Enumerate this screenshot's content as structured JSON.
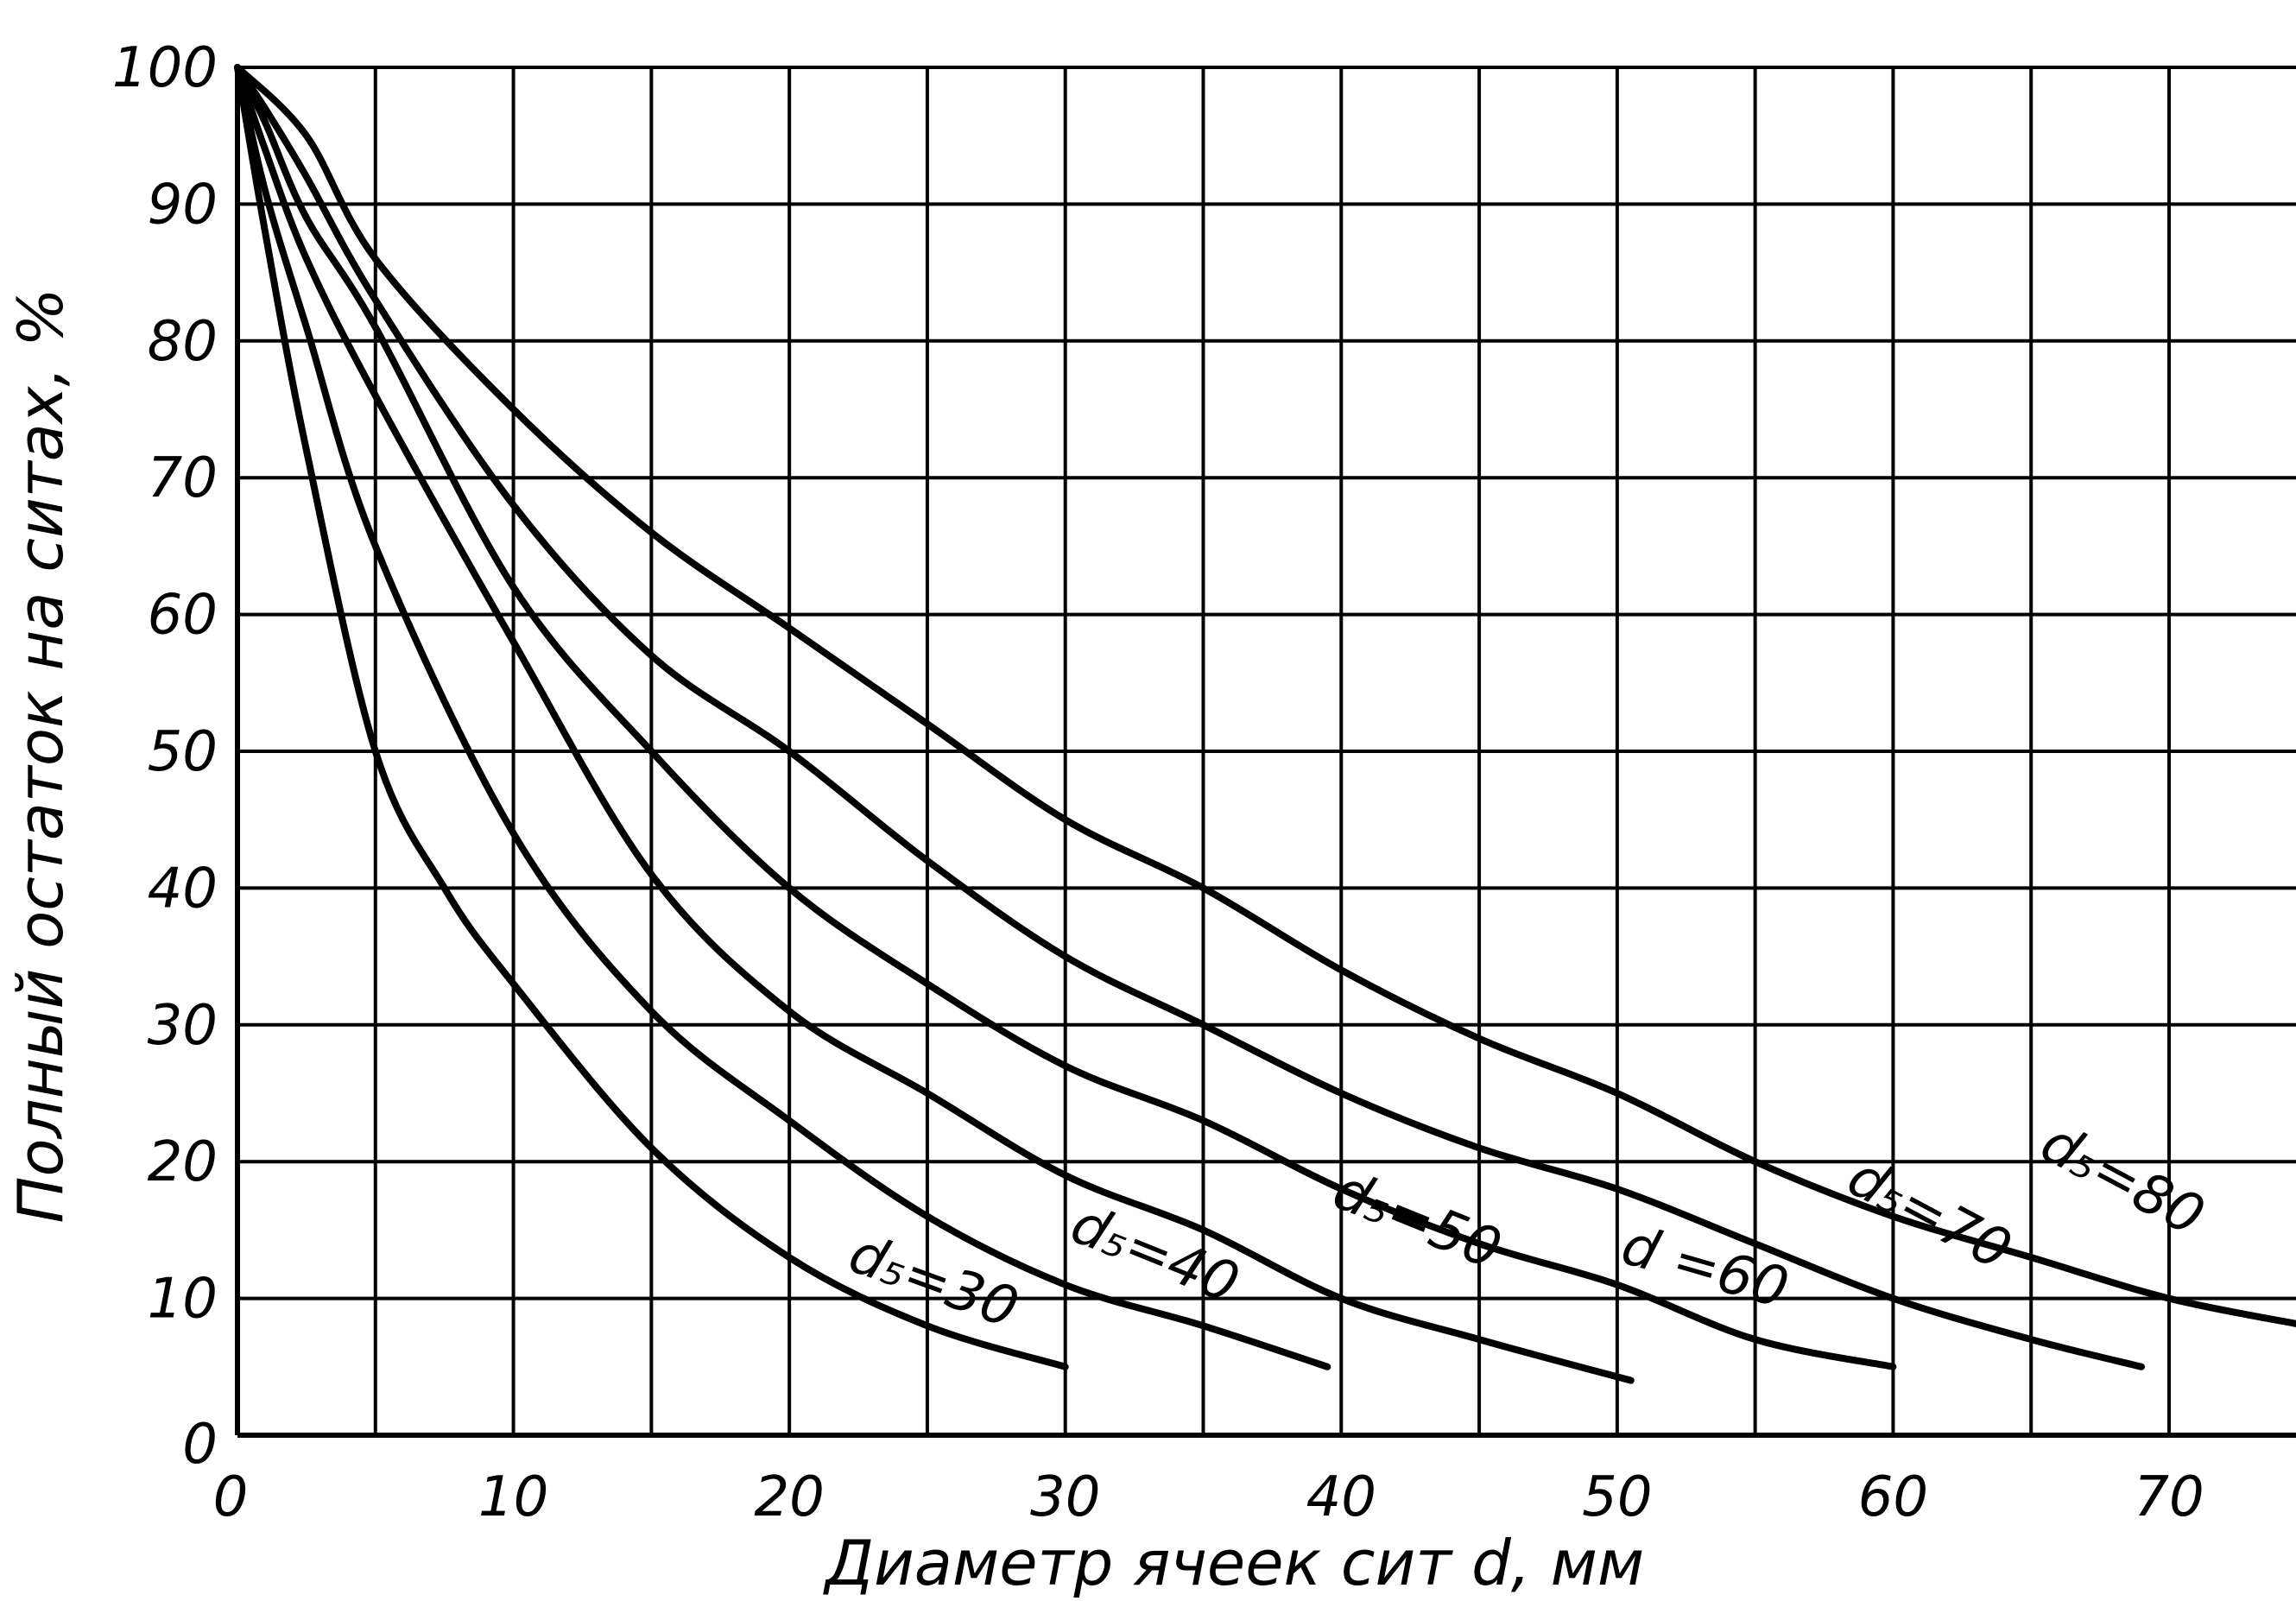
{
  "chart_data": {
    "type": "line",
    "title": "",
    "xlabel": "Диаметр ячеек сит d, мм",
    "ylabel": "Полный остаток на ситах, %",
    "xlim": [
      0,
      75
    ],
    "ylim": [
      0,
      100
    ],
    "grid": true,
    "x_ticks": [
      "0",
      "10",
      "20",
      "30",
      "40",
      "50",
      "60",
      "70"
    ],
    "y_ticks": [
      "0",
      "10",
      "20",
      "30",
      "40",
      "50",
      "60",
      "70",
      "80",
      "90",
      "100"
    ],
    "series": [
      {
        "name": "d₅=30",
        "x": [
          0,
          1,
          2.5,
          5,
          7.5,
          10,
          15,
          20,
          25,
          30
        ],
        "y": [
          100,
          88,
          72,
          50,
          40,
          33,
          21,
          13,
          8,
          5
        ]
      },
      {
        "name": "d₅=40",
        "x": [
          0,
          1,
          2.5,
          5,
          10,
          15,
          20,
          25,
          30,
          35,
          39.5
        ],
        "y": [
          100,
          91,
          81,
          65,
          44,
          31,
          23,
          16,
          11,
          8,
          5
        ]
      },
      {
        "name": "d₅=50",
        "x": [
          0,
          1,
          2.5,
          5,
          10,
          15,
          20,
          25,
          30,
          35,
          40,
          45,
          50.5
        ],
        "y": [
          100,
          94,
          86,
          76,
          58,
          41,
          31,
          25,
          19,
          15,
          10,
          7,
          4
        ]
      },
      {
        "name": "d  =60",
        "x": [
          0,
          1,
          2.5,
          5,
          10,
          15,
          20,
          25,
          30,
          35,
          40,
          45,
          50,
          55,
          60
        ],
        "y": [
          100,
          96,
          89,
          81,
          62,
          50,
          40,
          33,
          27,
          23,
          18,
          14,
          11,
          7,
          5
        ]
      },
      {
        "name": "d₅=70",
        "x": [
          0,
          1,
          2.5,
          5,
          10,
          15,
          20,
          25,
          30,
          35,
          40,
          45,
          50,
          55,
          60,
          65,
          69
        ],
        "y": [
          100,
          97,
          92,
          83,
          68,
          57,
          50,
          42,
          35,
          30,
          25,
          21,
          18,
          14,
          10,
          7,
          5
        ]
      },
      {
        "name": "d₅=80",
        "x": [
          0,
          2.5,
          5,
          10,
          15,
          20,
          25,
          30,
          35,
          40,
          45,
          50,
          55,
          60,
          65,
          70,
          75
        ],
        "y": [
          100,
          95,
          86,
          75,
          66,
          59,
          52,
          45,
          40,
          34,
          29,
          25,
          20,
          16,
          13,
          10,
          8
        ]
      }
    ],
    "label_positions": [
      {
        "series": 0,
        "at_x": 25,
        "at_y": 10,
        "angle": 20
      },
      {
        "series": 1,
        "at_x": 33,
        "at_y": 12,
        "angle": 22
      },
      {
        "series": 2,
        "at_x": 42.5,
        "at_y": 14.5,
        "angle": 22
      },
      {
        "series": 3,
        "at_x": 53,
        "at_y": 11,
        "angle": 16
      },
      {
        "series": 4,
        "at_x": 61,
        "at_y": 15,
        "angle": 28
      },
      {
        "series": 5,
        "at_x": 68,
        "at_y": 17.5,
        "angle": 28
      }
    ]
  }
}
